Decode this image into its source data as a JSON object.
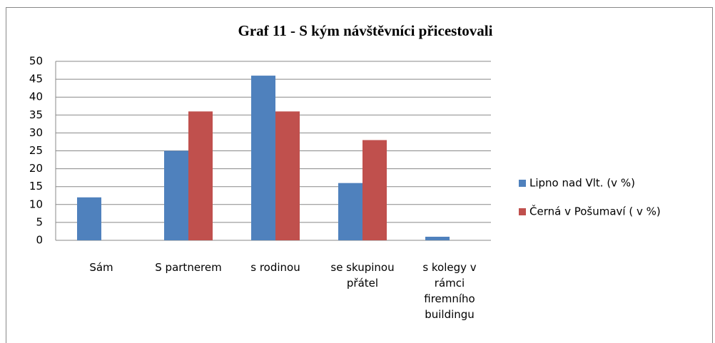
{
  "chart_data": {
    "type": "bar",
    "title": "Graf 11 - S kým návštěvníci přicestovali",
    "categories": [
      "Sám",
      "S partnerem",
      "s rodinou",
      "se skupinou přátel",
      "s kolegy v rámci firemního buildingu"
    ],
    "series": [
      {
        "name": "Lipno nad Vlt. (v %)",
        "color": "#4f81bd",
        "values": [
          12,
          25,
          46,
          16,
          1
        ]
      },
      {
        "name": "Černá v Pošumaví ( v %)",
        "color": "#c0504d",
        "values": [
          0,
          36,
          36,
          28,
          0
        ]
      }
    ],
    "ylim": [
      0,
      50
    ],
    "yticks": [
      0,
      5,
      10,
      15,
      20,
      25,
      30,
      35,
      40,
      45,
      50
    ],
    "grid": true,
    "legend": "right"
  }
}
